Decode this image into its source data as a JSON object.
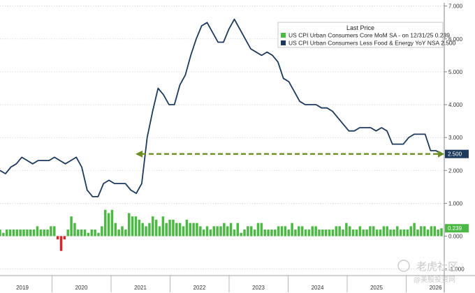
{
  "chart_data": {
    "type": "bar+line",
    "legend": {
      "title": "Last Price",
      "placement": "top-right",
      "entries": [
        {
          "label": "US CPI Urban Consumers Core MoM SA -  on 12/31/25 0.239",
          "color": "#4cb944"
        },
        {
          "label": "US CPI Urban Consumers Less Food & Energy YoY NSA 2.500",
          "color": "#1d3a5c"
        }
      ]
    },
    "x_ticks": [
      "2019",
      "2020",
      "2021",
      "2022",
      "2023",
      "2024",
      "2025",
      "2026"
    ],
    "y_ticks": [
      "7.000",
      "6.000",
      "5.000",
      "4.000",
      "3.000",
      "2.000",
      "1.000",
      "0.000",
      "-1.000"
    ],
    "ylim": [
      -1.2,
      7.1
    ],
    "last_value_labels": {
      "line": "2.500",
      "bars": "0.239"
    },
    "reference_line": {
      "value": 2.5,
      "color": "#6b8e23",
      "style": "dashed-arrow"
    },
    "series": [
      {
        "kind": "line",
        "color": "#1d3a5c",
        "values": [
          2.0,
          1.9,
          2.1,
          2.2,
          2.4,
          2.3,
          2.2,
          2.3,
          2.3,
          2.3,
          2.4,
          2.3,
          2.2,
          2.3,
          2.4,
          2.1,
          1.4,
          1.2,
          1.2,
          1.6,
          1.7,
          1.6,
          1.6,
          1.6,
          1.4,
          1.3,
          1.6,
          3.0,
          3.8,
          4.5,
          4.3,
          4.0,
          4.0,
          4.6,
          4.9,
          5.5,
          6.0,
          6.4,
          6.5,
          6.2,
          5.9,
          5.9,
          6.3,
          6.6,
          6.3,
          6.0,
          5.7,
          5.6,
          5.5,
          5.6,
          5.5,
          5.3,
          4.8,
          4.7,
          4.4,
          4.1,
          4.0,
          4.0,
          4.0,
          3.9,
          3.9,
          3.8,
          3.6,
          3.4,
          3.2,
          3.2,
          3.3,
          3.3,
          3.3,
          3.2,
          3.3,
          3.2,
          2.8,
          2.8,
          2.8,
          3.0,
          3.1,
          3.1,
          3.1,
          2.6,
          2.6,
          2.5
        ]
      },
      {
        "kind": "bar",
        "positive_color": "#4cb944",
        "negative_color": "#d9262c",
        "values": [
          0.2,
          0.1,
          0.2,
          0.2,
          0.2,
          0.2,
          0.2,
          0.2,
          0.2,
          0.2,
          0.2,
          0.3,
          0.2,
          0.2,
          0.2,
          0.3,
          0.3,
          -0.1,
          -0.45,
          -0.1,
          0.2,
          0.6,
          0.4,
          0.2,
          0.2,
          0.2,
          0.1,
          0.2,
          0.2,
          0.1,
          0.3,
          0.8,
          0.7,
          0.8,
          0.4,
          0.2,
          0.3,
          0.2,
          0.7,
          0.6,
          0.6,
          0.5,
          0.4,
          0.3,
          0.4,
          0.6,
          0.5,
          0.3,
          0.6,
          0.4,
          0.5,
          0.5,
          0.4,
          0.4,
          0.3,
          0.5,
          0.4,
          0.4,
          0.4,
          0.3,
          0.2,
          0.3,
          0.2,
          0.3,
          0.3,
          0.3,
          0.4,
          0.3,
          0.4,
          0.2,
          0.4,
          0.1,
          0.2,
          0.3,
          0.3,
          0.2,
          0.4,
          0.4,
          0.2,
          0.2,
          0.2,
          0.2,
          0.3,
          0.3,
          0.3,
          0.2,
          0.4,
          0.2,
          0.3,
          0.3,
          0.2,
          0.2,
          0.3,
          0.3,
          0.2,
          0.2,
          0.2,
          0.2,
          0.2,
          0.3,
          0.3,
          0.2,
          0.4,
          0.3,
          0.2,
          0.2,
          0.3,
          0.2,
          0.2,
          0.3,
          0.3,
          0.2,
          0.2,
          0.3,
          0.3,
          0.2,
          0.2,
          0.3,
          0.2,
          0.2,
          0.2,
          0.3,
          0.4,
          0.2,
          0.3,
          0.3,
          0.2,
          0.3,
          0.3,
          0.2,
          0.239
        ]
      }
    ]
  },
  "watermark": {
    "brand_text": "老虎社区",
    "handle_text": "@美股投资网"
  }
}
